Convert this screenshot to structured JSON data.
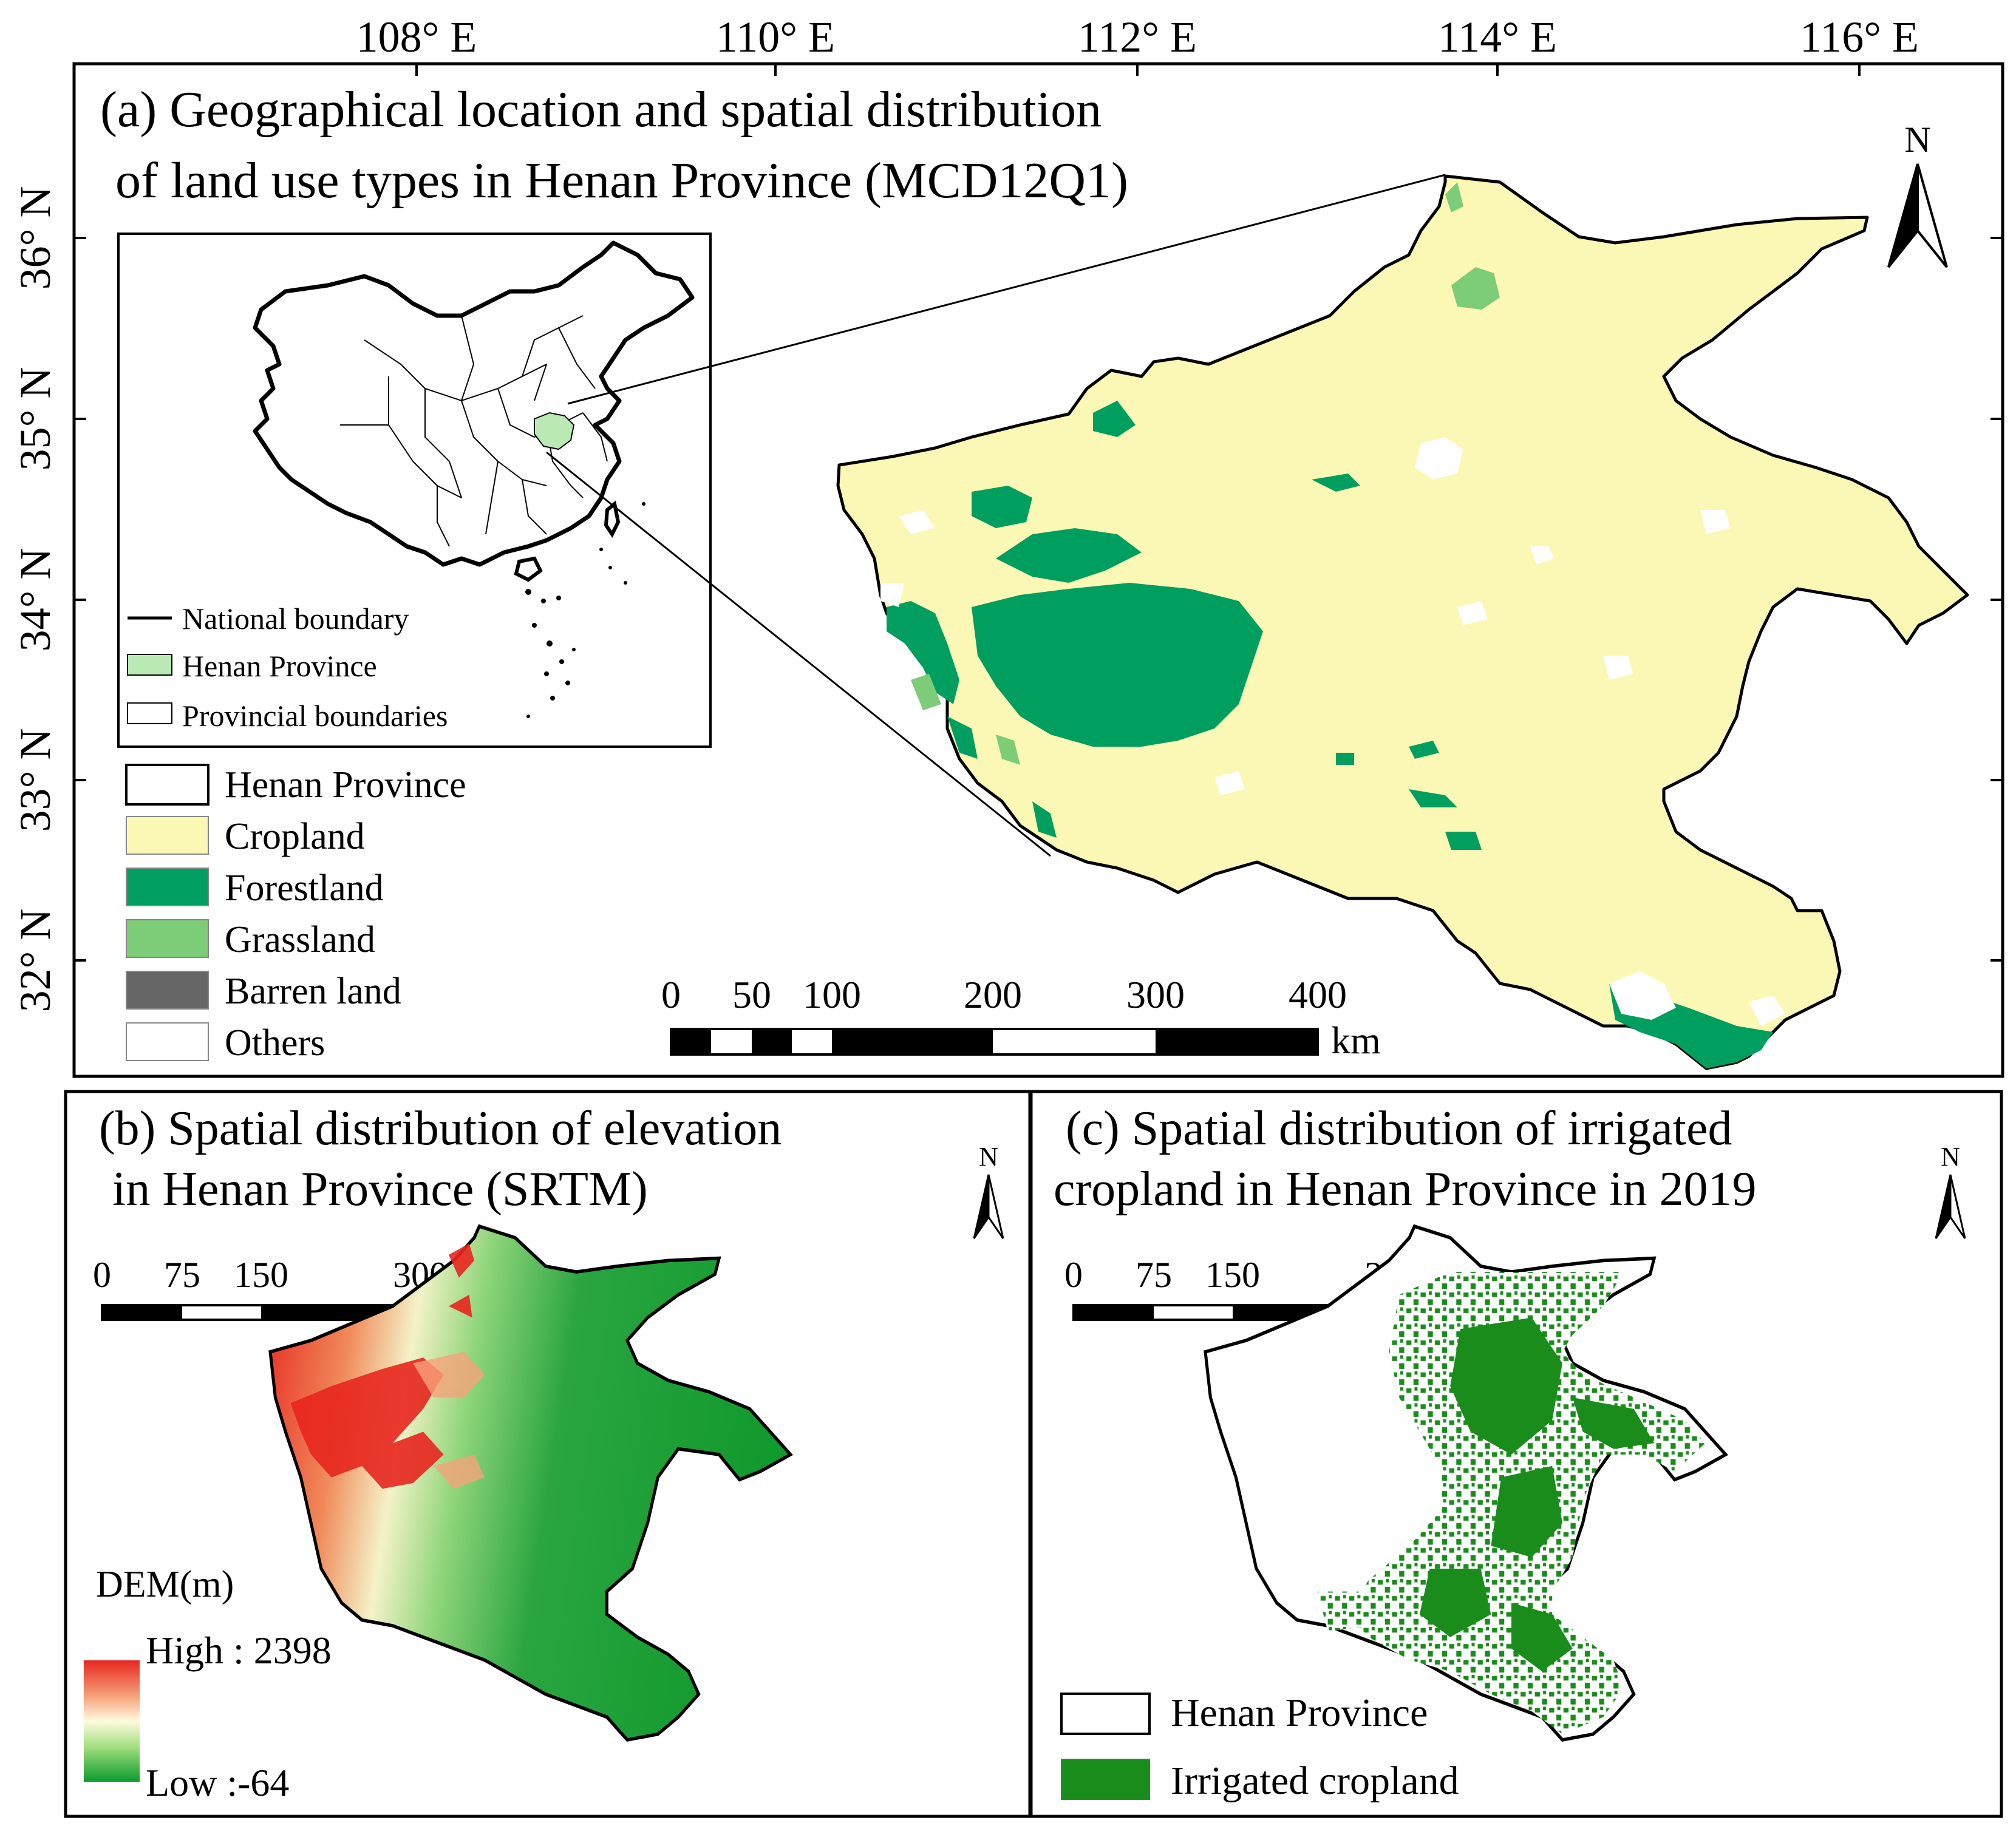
{
  "axes": {
    "lon_labels": [
      "108° E",
      "110° E",
      "112° E",
      "114° E",
      "116° E"
    ],
    "lat_labels": [
      "36° N",
      "35° N",
      "34° N",
      "33° N",
      "32° N"
    ]
  },
  "panel_a": {
    "title_line1": "(a) Geographical location and spatial distribution",
    "title_line2": "of land use types in Henan Province (MCD12Q1)",
    "inset_legend": [
      {
        "label": "National boundary",
        "symbol": "line",
        "color": "#000000"
      },
      {
        "label": "Henan Province",
        "symbol": "patch",
        "color": "#b9eab4"
      },
      {
        "label": "Provincial boundaries",
        "symbol": "patch",
        "color": "#ffffff"
      }
    ],
    "legend": [
      {
        "label": "Henan Province",
        "color": "#ffffff"
      },
      {
        "label": "Cropland",
        "color": "#fbf7b4"
      },
      {
        "label": "Forestland",
        "color": "#009e5f"
      },
      {
        "label": "Grassland",
        "color": "#7dcc78"
      },
      {
        "label": "Barren land",
        "color": "#666666"
      },
      {
        "label": "Others",
        "color": "#ffffff"
      }
    ],
    "scalebar": {
      "ticks": [
        "0",
        "50",
        "100",
        "200",
        "300",
        "400"
      ],
      "unit": "km"
    },
    "north": "N"
  },
  "panel_b": {
    "title_line1": "(b) Spatial distribution of elevation",
    "title_line2": "in Henan Province (SRTM)",
    "scalebar": {
      "ticks": [
        "0",
        "75",
        "150",
        "300"
      ],
      "unit": "km"
    },
    "north": "N",
    "legend_title": "DEM(m)",
    "legend_high": "High : 2398",
    "legend_low": "Low :-64",
    "ramp_colors": [
      "#e8261f",
      "#f6a37a",
      "#fffbe0",
      "#9fde7c",
      "#0d9a2e"
    ]
  },
  "panel_c": {
    "title_line1": "(c) Spatial distribution of irrigated",
    "title_line2": "cropland in Henan Province in 2019",
    "scalebar": {
      "ticks": [
        "0",
        "75",
        "150",
        "300"
      ],
      "unit": "km"
    },
    "north": "N",
    "legend": [
      {
        "label": "Henan Province",
        "color": "#ffffff"
      },
      {
        "label": "Irrigated cropland",
        "color": "#1a8c1c"
      }
    ]
  },
  "colors": {
    "cropland": "#fbf7b4",
    "forest": "#009e5f",
    "grass": "#7dcc78",
    "irrigated": "#1a8c1c",
    "henan_inset": "#b9eab4"
  }
}
